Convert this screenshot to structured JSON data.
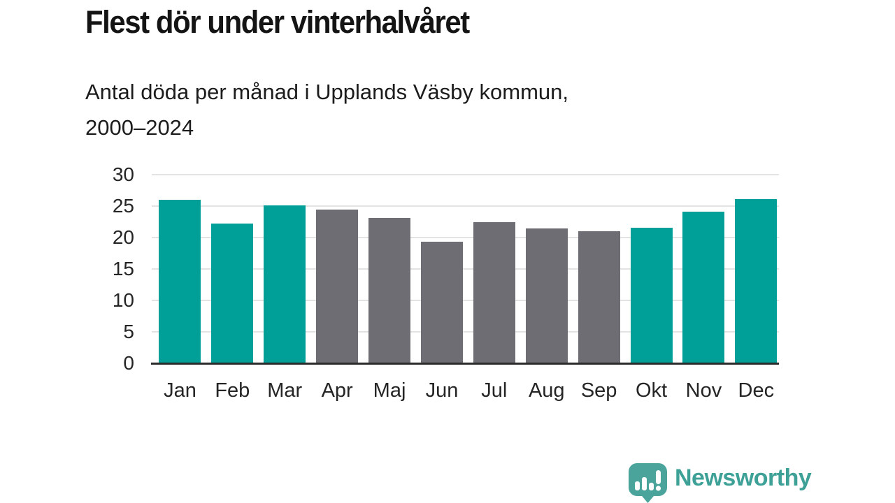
{
  "header": {
    "title": "Flest dör under vinterhalvåret",
    "subtitle_line1": "Antal döda per månad i Upplands Väsby kommun,",
    "subtitle_line2": "2000–2024"
  },
  "chart_data": {
    "type": "bar",
    "title": "Flest dör under vinterhalvåret",
    "subtitle": "Antal döda per månad i Upplands Väsby kommun, 2000–2024",
    "categories": [
      "Jan",
      "Feb",
      "Mar",
      "Apr",
      "Maj",
      "Jun",
      "Jul",
      "Aug",
      "Sep",
      "Okt",
      "Nov",
      "Dec"
    ],
    "values": [
      26.0,
      22.2,
      25.1,
      24.4,
      23.1,
      19.3,
      22.4,
      21.4,
      21.0,
      21.6,
      24.1,
      26.1
    ],
    "bar_roles": [
      "highlight",
      "highlight",
      "highlight",
      "default",
      "default",
      "default",
      "default",
      "default",
      "default",
      "highlight",
      "highlight",
      "highlight"
    ],
    "xlabel": "",
    "ylabel": "",
    "ylim": [
      0,
      30
    ],
    "yticks": [
      0,
      5,
      10,
      15,
      20,
      25,
      30
    ],
    "grid": true,
    "legend": "none",
    "colors": {
      "highlight": "#00a099",
      "default": "#6e6d73",
      "gridline": "#e3e3e3",
      "axis": "#2b2b2b"
    }
  },
  "branding": {
    "logo_text": "Newsworthy",
    "logo_icon": "newsworthy-speech-bubble-barchart-icon",
    "logo_text_color": "#3ea197",
    "logo_icon_color": "#4ba49c"
  }
}
